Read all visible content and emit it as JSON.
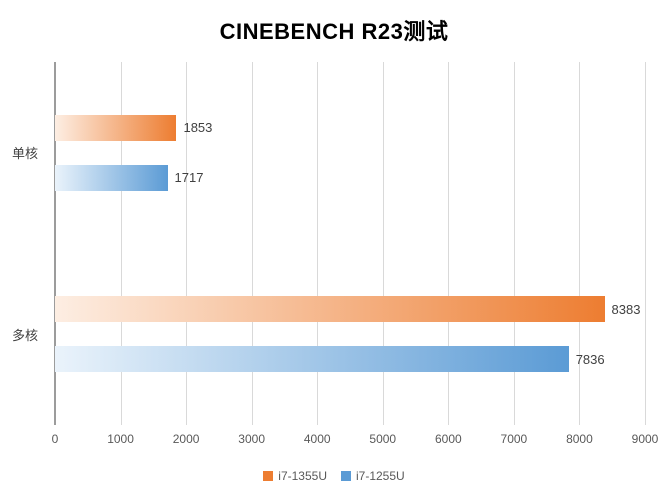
{
  "chart_data": {
    "type": "bar",
    "orientation": "horizontal",
    "title": "CINEBENCH R23测试",
    "categories": [
      "单核",
      "多核"
    ],
    "series": [
      {
        "name": "i7-1355U",
        "color": "#ED7D31",
        "color_light": "#FDEEE3",
        "values": [
          1853,
          8383
        ]
      },
      {
        "name": "i7-1255U",
        "color": "#5B9BD5",
        "color_light": "#EAF3FB",
        "values": [
          1717,
          7836
        ]
      }
    ],
    "xlim": [
      0,
      9000
    ],
    "x_ticks": [
      0,
      1000,
      2000,
      3000,
      4000,
      5000,
      6000,
      7000,
      8000,
      9000
    ],
    "grid": true,
    "legend_position": "bottom",
    "gridline_color": "#d9d9d9",
    "axis_line_color": "#9c9c9c"
  }
}
